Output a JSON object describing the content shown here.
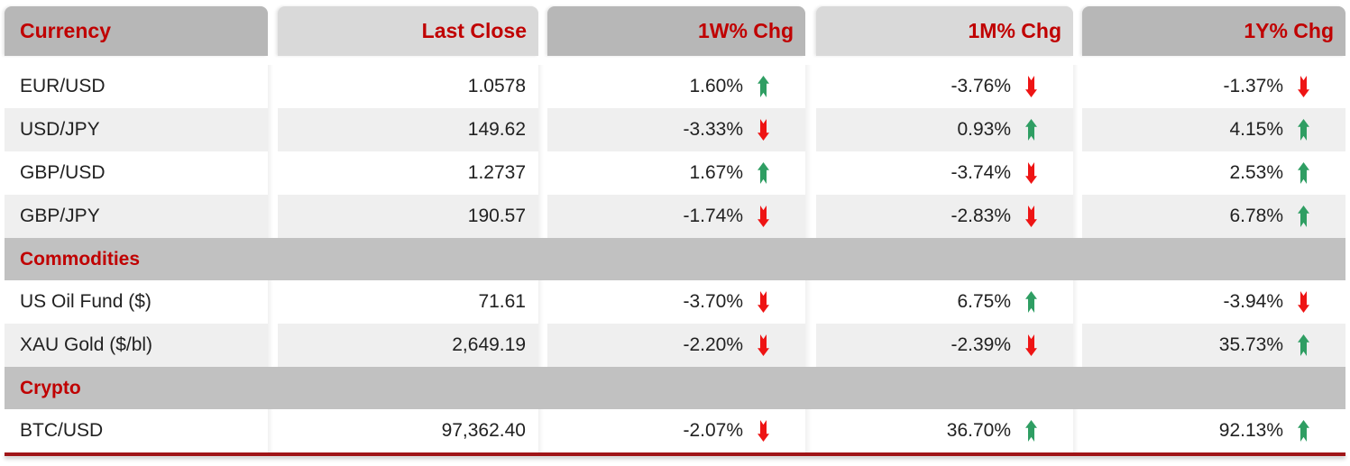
{
  "table": {
    "columns": [
      {
        "label": "Currency",
        "align": "left",
        "shade": "dark"
      },
      {
        "label": "Last Close",
        "align": "right",
        "shade": "light"
      },
      {
        "label": "1W% Chg",
        "align": "right",
        "shade": "dark"
      },
      {
        "label": "1M% Chg",
        "align": "right",
        "shade": "light"
      },
      {
        "label": "1Y% Chg",
        "align": "right",
        "shade": "dark"
      }
    ],
    "rows": [
      {
        "type": "data",
        "name": "EUR/USD",
        "last_close": "1.0578",
        "chg_1w": {
          "value": "1.60%",
          "dir": "up"
        },
        "chg_1m": {
          "value": "-3.76%",
          "dir": "down"
        },
        "chg_1y": {
          "value": "-1.37%",
          "dir": "down"
        }
      },
      {
        "type": "data",
        "name": "USD/JPY",
        "last_close": "149.62",
        "chg_1w": {
          "value": "-3.33%",
          "dir": "down"
        },
        "chg_1m": {
          "value": "0.93%",
          "dir": "up"
        },
        "chg_1y": {
          "value": "4.15%",
          "dir": "up"
        }
      },
      {
        "type": "data",
        "name": "GBP/USD",
        "last_close": "1.2737",
        "chg_1w": {
          "value": "1.67%",
          "dir": "up"
        },
        "chg_1m": {
          "value": "-3.74%",
          "dir": "down"
        },
        "chg_1y": {
          "value": "2.53%",
          "dir": "up"
        }
      },
      {
        "type": "data",
        "name": "GBP/JPY",
        "last_close": "190.57",
        "chg_1w": {
          "value": "-1.74%",
          "dir": "down"
        },
        "chg_1m": {
          "value": "-2.83%",
          "dir": "down"
        },
        "chg_1y": {
          "value": "6.78%",
          "dir": "up"
        }
      },
      {
        "type": "section",
        "label": "Commodities"
      },
      {
        "type": "data",
        "name": "US Oil Fund ($)",
        "last_close": "71.61",
        "chg_1w": {
          "value": "-3.70%",
          "dir": "down"
        },
        "chg_1m": {
          "value": "6.75%",
          "dir": "up"
        },
        "chg_1y": {
          "value": "-3.94%",
          "dir": "down"
        }
      },
      {
        "type": "data",
        "name": "XAU Gold ($/bl)",
        "last_close": "2,649.19",
        "chg_1w": {
          "value": "-2.20%",
          "dir": "down"
        },
        "chg_1m": {
          "value": "-2.39%",
          "dir": "down"
        },
        "chg_1y": {
          "value": "35.73%",
          "dir": "up"
        }
      },
      {
        "type": "section",
        "label": "Crypto"
      },
      {
        "type": "data",
        "name": "BTC/USD",
        "last_close": "97,362.40",
        "chg_1w": {
          "value": "-2.07%",
          "dir": "down"
        },
        "chg_1m": {
          "value": "36.70%",
          "dir": "up"
        },
        "chg_1y": {
          "value": "92.13%",
          "dir": "up"
        }
      }
    ],
    "icons": {
      "up_arrow": "ribbon-arrow-up-icon",
      "down_arrow": "ribbon-arrow-down-icon"
    },
    "colors": {
      "accent_red_text": "#C00000",
      "header_dark_gray": "#b7b7b7",
      "header_light_gray": "#d9d9d9",
      "section_gray": "#c1c1c1",
      "row_stripe_gray": "#efefef",
      "up_green": "#2f9e63",
      "down_red": "#ee1414",
      "bottom_border_red": "#a01518"
    }
  }
}
